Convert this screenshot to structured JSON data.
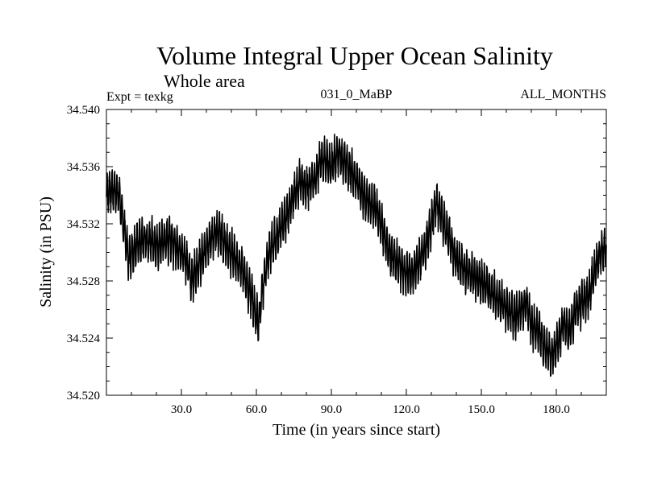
{
  "chart_data": {
    "type": "line",
    "title": "Volume Integral Upper Ocean Salinity",
    "subtitle": "Whole area",
    "left_label": "Expt = texkg",
    "center_label": "031_0_MaBP",
    "right_label": "ALL_MONTHS",
    "xlabel": "Time (in years since start)",
    "ylabel": "Salinity (in PSU)",
    "xlim": [
      0,
      200
    ],
    "ylim": [
      34.52,
      34.54
    ],
    "x_ticks": [
      30,
      60,
      90,
      120,
      150,
      180
    ],
    "x_tick_labels": [
      "30.0",
      "60.0",
      "90.0",
      "120.0",
      "150.0",
      "180.0"
    ],
    "y_ticks": [
      34.52,
      34.524,
      34.528,
      34.532,
      34.536,
      34.54
    ],
    "y_tick_labels": [
      "34.520",
      "34.524",
      "34.528",
      "34.532",
      "34.536",
      "34.540"
    ],
    "series": [
      {
        "name": "salinity",
        "color": "#000000",
        "trend": {
          "x": [
            0,
            2,
            5,
            9,
            12,
            15,
            20,
            25,
            30,
            33,
            34,
            38,
            42,
            45,
            48,
            50,
            52,
            55,
            58,
            60,
            61,
            62,
            65,
            68,
            72,
            75,
            78,
            80,
            83,
            86,
            90,
            93,
            95,
            98,
            100,
            103,
            105,
            108,
            110,
            113,
            115,
            118,
            120,
            122,
            124,
            127,
            130,
            132,
            135,
            138,
            140,
            145,
            150,
            155,
            160,
            163,
            165,
            168,
            170,
            173,
            175,
            177,
            178,
            180,
            183,
            185,
            188,
            190,
            193,
            195,
            198,
            200
          ],
          "y": [
            34.534,
            34.5345,
            34.534,
            34.5295,
            34.5305,
            34.531,
            34.5305,
            34.531,
            34.53,
            34.529,
            34.528,
            34.5295,
            34.531,
            34.5315,
            34.5305,
            34.53,
            34.5295,
            34.5285,
            34.527,
            34.5255,
            34.525,
            34.527,
            34.53,
            34.531,
            34.5325,
            34.534,
            34.535,
            34.5345,
            34.535,
            34.5365,
            34.536,
            34.537,
            34.5365,
            34.5355,
            34.535,
            34.534,
            34.5335,
            34.533,
            34.532,
            34.53,
            34.5295,
            34.529,
            34.5285,
            34.5285,
            34.529,
            34.53,
            34.532,
            34.5335,
            34.532,
            34.5305,
            34.5295,
            34.5285,
            34.528,
            34.527,
            34.5262,
            34.5255,
            34.5258,
            34.5265,
            34.525,
            34.5245,
            34.5235,
            34.523,
            34.5228,
            34.5235,
            34.525,
            34.5245,
            34.526,
            34.5265,
            34.527,
            34.5285,
            34.53,
            34.5305
          ],
          "seasonal_amplitude": 0.0013
        }
      }
    ]
  }
}
